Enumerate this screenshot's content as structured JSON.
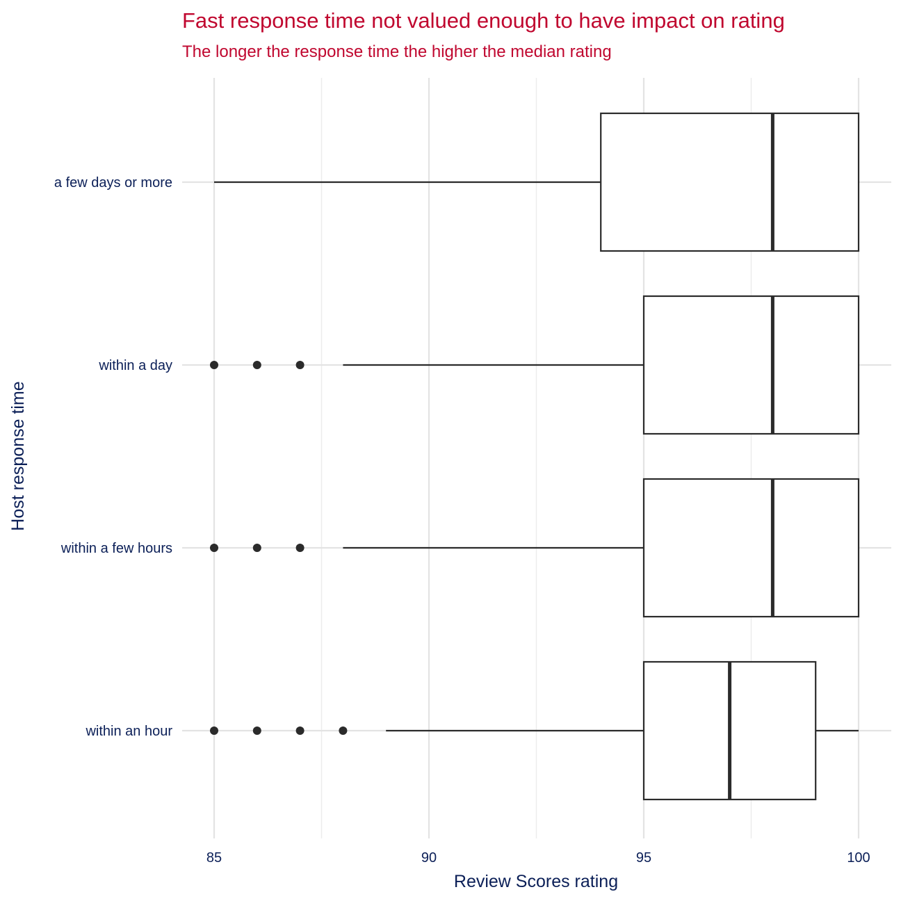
{
  "chart_data": {
    "type": "boxplot",
    "orientation": "horizontal",
    "title": "Fast response time not valued enough to have impact on rating",
    "subtitle": "The longer the response time the higher the median rating",
    "xlabel": "Review Scores rating",
    "ylabel": "Host response time",
    "xlim": [
      84.4,
      100.7
    ],
    "x_ticks": [
      85,
      90,
      95,
      100
    ],
    "x_tick_labels": [
      "85",
      "90",
      "95",
      "100"
    ],
    "x_minor_ticks": [
      87.5,
      92.5,
      97.5
    ],
    "grid": true,
    "categories": [
      "within an hour",
      "within a few hours",
      "within a day",
      "a few days or more"
    ],
    "boxes": [
      {
        "category": "within an hour",
        "whisker_low": 89,
        "q1": 95,
        "median": 97,
        "q3": 99,
        "whisker_high": 100,
        "outliers": [
          85,
          86,
          87,
          88
        ]
      },
      {
        "category": "within a few hours",
        "whisker_low": 88,
        "q1": 95,
        "median": 98,
        "q3": 100,
        "whisker_high": 100,
        "outliers": [
          85,
          86,
          87
        ]
      },
      {
        "category": "within a day",
        "whisker_low": 88,
        "q1": 95,
        "median": 98,
        "q3": 100,
        "whisker_high": 100,
        "outliers": [
          85,
          86,
          87
        ]
      },
      {
        "category": "a few days or more",
        "whisker_low": 85,
        "q1": 94,
        "median": 98,
        "q3": 100,
        "whisker_high": 100,
        "outliers": []
      }
    ],
    "colors": {
      "title": "#c0072f",
      "text": "#0b1f57",
      "box_line": "#2b2b2b",
      "grid": "#e3e3e3"
    }
  }
}
